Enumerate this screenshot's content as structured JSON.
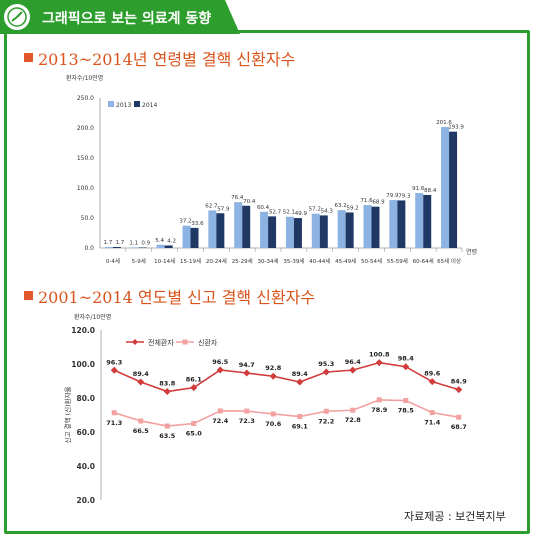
{
  "header": {
    "title": "그래픽으로 보는 의료계 동향"
  },
  "source": "자료제공 : 보건복지부",
  "colors": {
    "accent_green": "#2d9d2d",
    "title_orange": "#d9541c",
    "bar_2013": "#8db3e2",
    "bar_2014": "#1f3864",
    "line_total": "#d13b3b",
    "line_new": "#f2a0a0"
  },
  "chart_data": [
    {
      "type": "bar",
      "title": "2013~2014년 연령별 결핵 신환자수",
      "ylabel": "환자수/10만명",
      "xlabel": "연령",
      "ylim": [
        0,
        250
      ],
      "yticks": [
        "250.0",
        "200.0",
        "150.0",
        "100.0",
        "50.0",
        "0.0"
      ],
      "yticks_values": [
        250,
        200,
        150,
        100,
        50,
        0
      ],
      "legend": "top-left",
      "categories": [
        "0-4세",
        "5-9세",
        "10-14세",
        "15-19세",
        "20-24세",
        "25-29세",
        "30-34세",
        "35-39세",
        "40-44세",
        "45-49세",
        "50-54세",
        "55-59세",
        "60-64세",
        "65세 이상"
      ],
      "series": [
        {
          "name": "2013",
          "values": [
            1.7,
            1.1,
            5.4,
            37.2,
            62.7,
            76.4,
            60.4,
            52.1,
            57.2,
            63.2,
            71.6,
            79.9,
            91.6,
            201.6
          ],
          "labels": [
            "1.7",
            "1.1",
            "5.4",
            "37.2",
            "62.7",
            "76.4",
            "60.4",
            "52.1",
            "57.2",
            "63.2",
            "71.6",
            "79.9",
            "91.6",
            "201.6"
          ]
        },
        {
          "name": "2014",
          "values": [
            1.7,
            0.9,
            4.2,
            33.6,
            57.9,
            70.4,
            52.7,
            49.9,
            54.3,
            59.2,
            68.9,
            79.3,
            88.4,
            193.9
          ],
          "labels": [
            "1.7",
            "0.9",
            "4.2",
            "33.6",
            "57.9",
            "70.4",
            "52.7",
            "49.9",
            "54.3",
            "59.2",
            "68.9",
            "79.3",
            "88.4",
            "193.9"
          ]
        }
      ]
    },
    {
      "type": "line",
      "title": "2001~2014 연도별 신고 결핵 신환자수",
      "ylabel_top": "환자수/10만명",
      "ylabel": "신고 결핵 (신)환자율",
      "ylim": [
        20,
        120
      ],
      "yticks": [
        "120.0",
        "100.0",
        "80.0",
        "60.0",
        "40.0",
        "20.0"
      ],
      "yticks_values": [
        120,
        100,
        80,
        60,
        40,
        20
      ],
      "legend": "top",
      "points": 14,
      "series": [
        {
          "name": "전체환자",
          "values": [
            96.3,
            89.4,
            83.8,
            86.1,
            96.5,
            94.7,
            92.8,
            89.4,
            95.3,
            96.4,
            100.8,
            98.4,
            89.6,
            84.9
          ],
          "labels": [
            "96.3",
            "89.4",
            "83.8",
            "86.1",
            "96.5",
            "94.7",
            "92.8",
            "89.4",
            "95.3",
            "96.4",
            "100.8",
            "98.4",
            "89.6",
            "84.9"
          ]
        },
        {
          "name": "신환자",
          "values": [
            71.3,
            66.5,
            63.5,
            65.0,
            72.4,
            72.3,
            70.6,
            69.1,
            72.2,
            72.8,
            78.9,
            78.5,
            71.4,
            68.7
          ],
          "labels": [
            "71.3",
            "66.5",
            "63.5",
            "65.0",
            "72.4",
            "72.3",
            "70.6",
            "69.1",
            "72.2",
            "72.8",
            "78.9",
            "78.5",
            "71.4",
            "68.7"
          ]
        }
      ]
    }
  ]
}
